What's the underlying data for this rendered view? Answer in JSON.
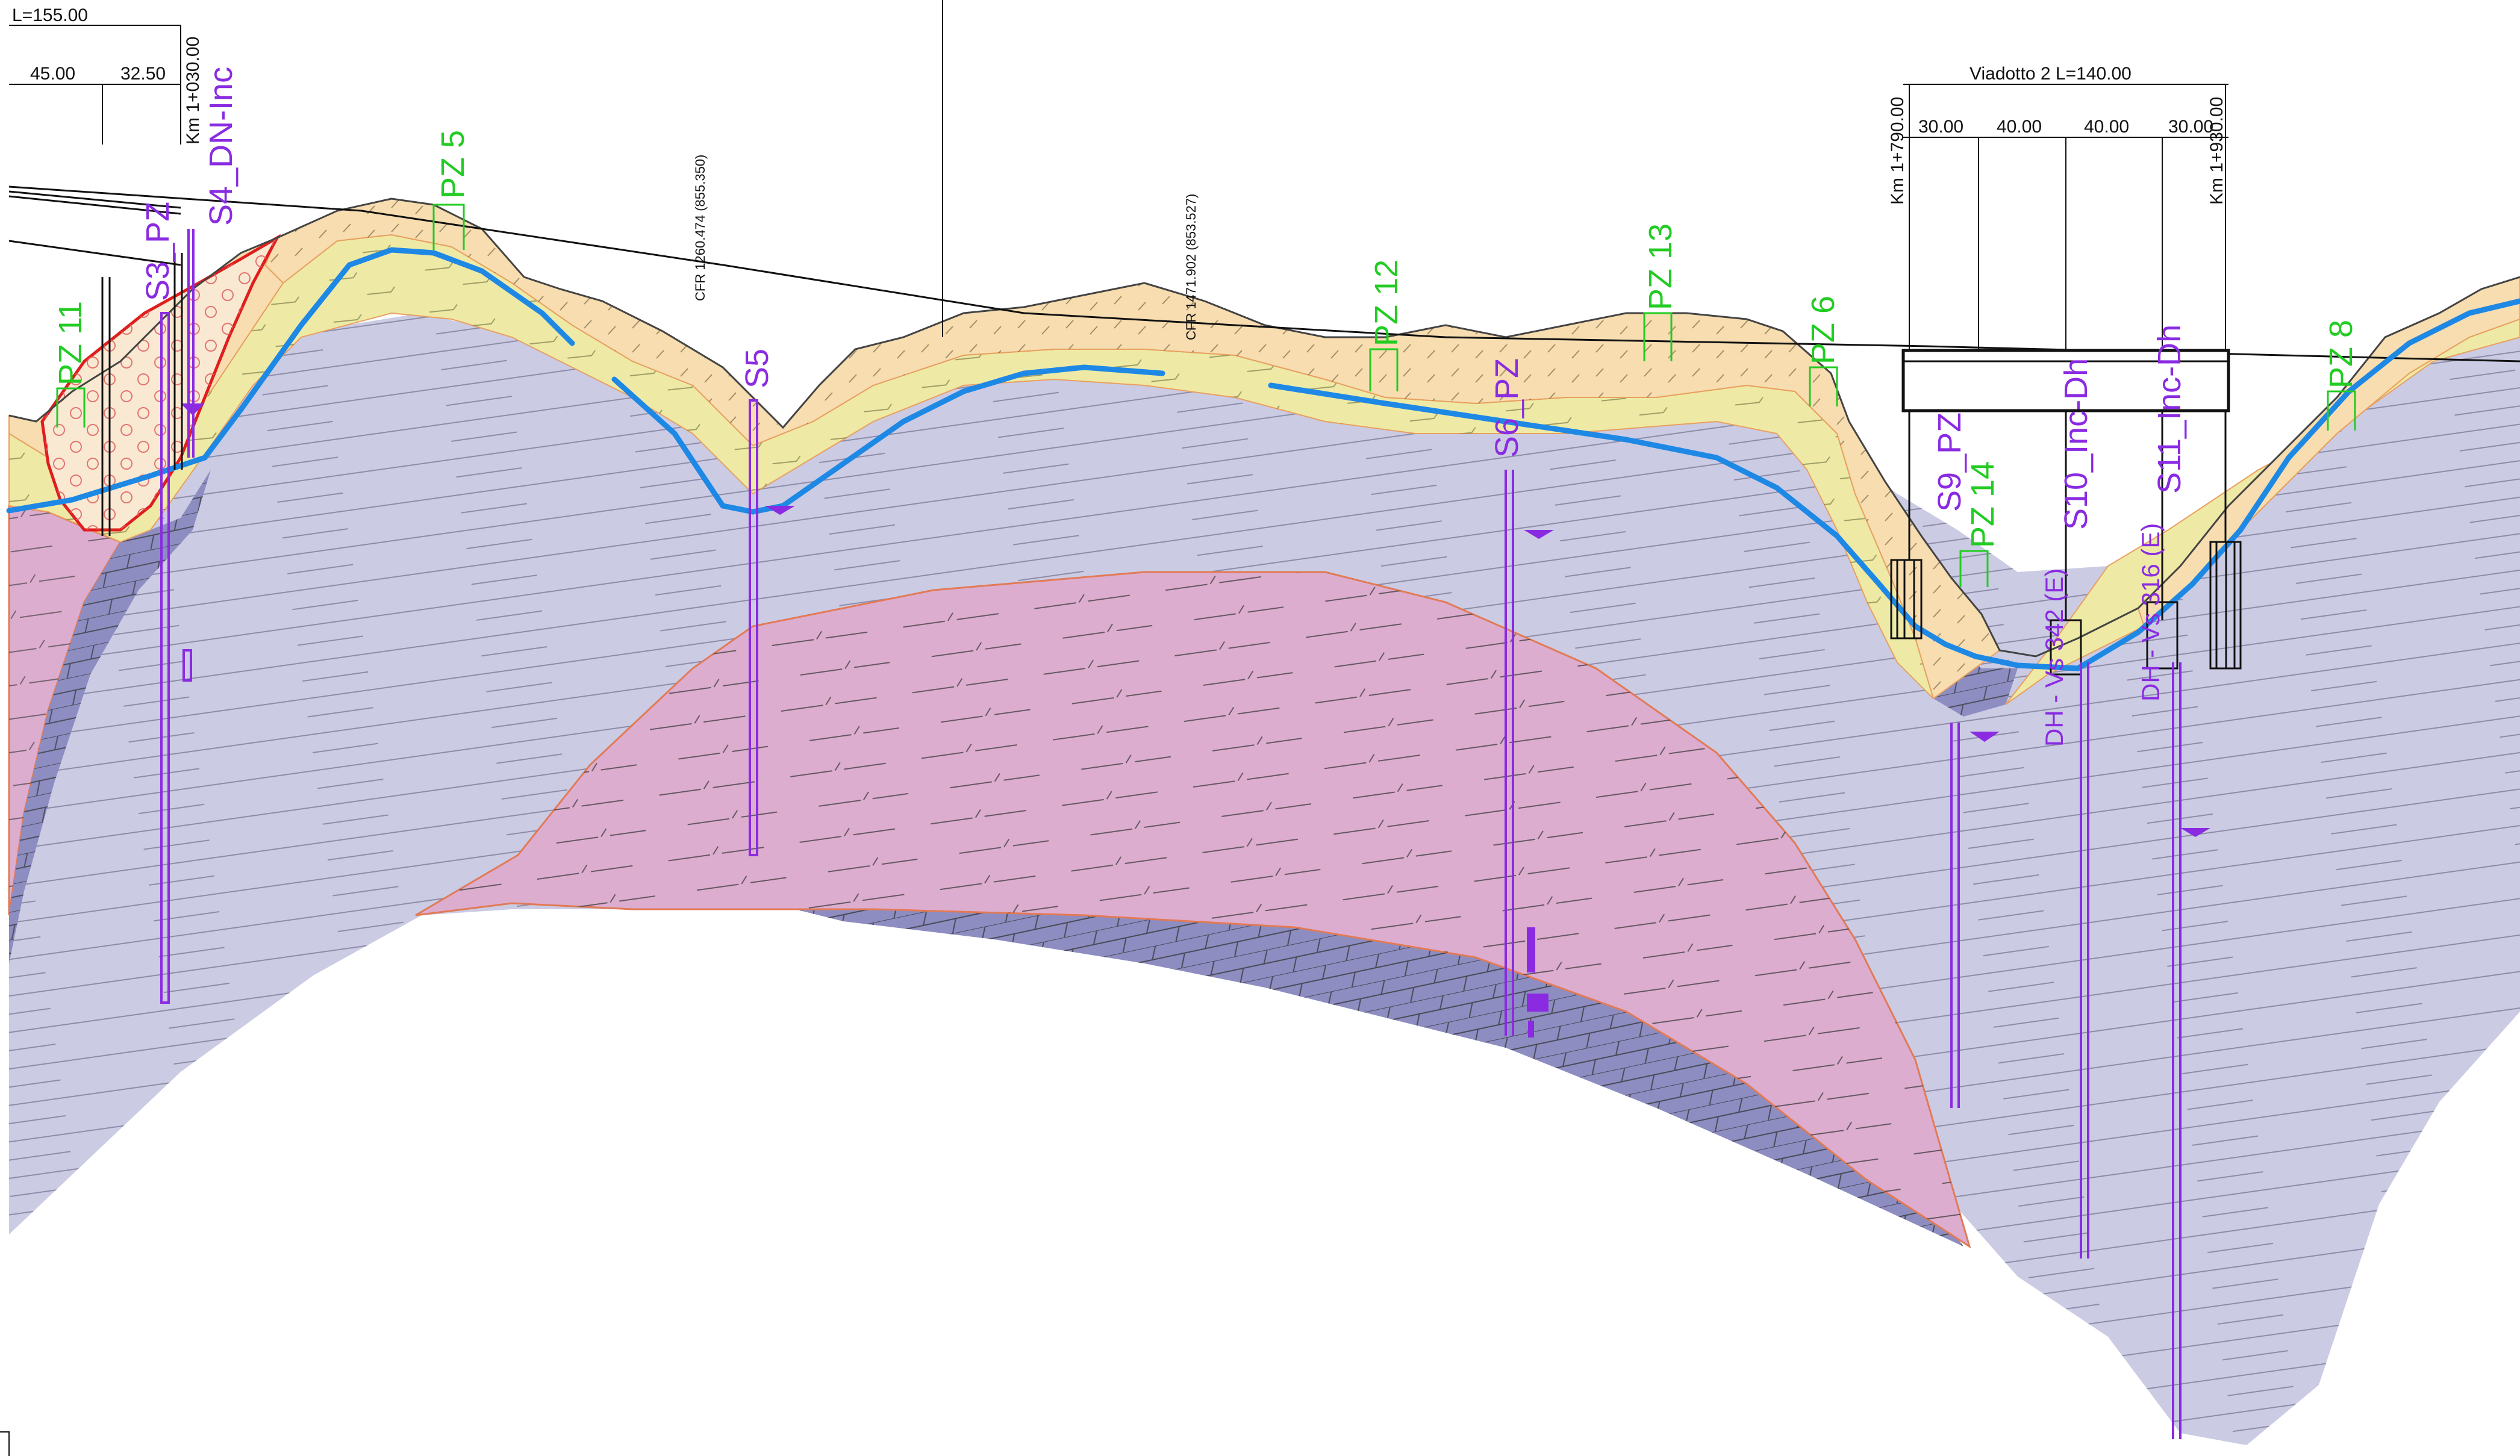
{
  "dimensions": {
    "total": "L=155.00",
    "span_a": "45.00",
    "span_b": "32.50",
    "viaduct": "Viadotto  2  L=140.00",
    "viaduct_spans": [
      "30.00",
      "40.00",
      "40.00",
      "30.00"
    ]
  },
  "chainages": {
    "km_left": "Km 1+030.00",
    "km_viaduct_start": "Km 1+790.00",
    "km_viaduct_end": "Km 1+930.00"
  },
  "references": {
    "ref_1": "CFR 1260.474  (855.350)",
    "ref_2": "CFR 1471.902  (853.527)"
  },
  "piezometers": {
    "pz11": "PZ 11",
    "pz5": "PZ 5",
    "pz12": "PZ 12",
    "pz13": "PZ 13",
    "pz6": "PZ 6",
    "pz14": "PZ 14",
    "pz8": "PZ 8"
  },
  "boreholes": {
    "s3": "S3_PZ",
    "s4": "S4_DN-Inc",
    "s5": "S5",
    "s6": "S6_PZ",
    "s9": "S9_PZ",
    "s10": "S10_Inc-Dh",
    "s11": "S11_Inc-Dh",
    "dh1": "DH - Vs 342 (E)",
    "dh2": "DH - Vs 316 (E)"
  },
  "colors": {
    "topsoil": "#f7ddb0",
    "upper_layer": "#eeeaa6",
    "bedrock": "#cbcbe4",
    "pink_unit": "#dcadcf",
    "dark_unit": "#8d8dc2",
    "groundwater": "#1e88e5",
    "landslide_outline": "#e01e1e",
    "piezometer": "#22cc22",
    "borehole": "#8a2be2"
  }
}
